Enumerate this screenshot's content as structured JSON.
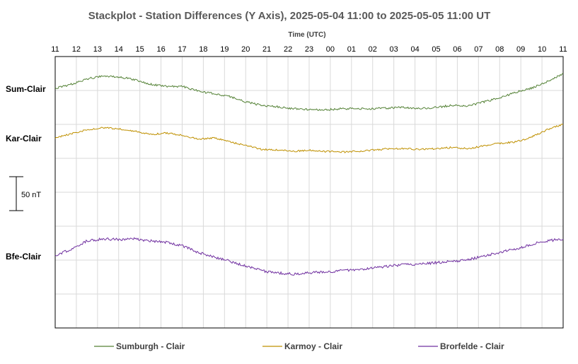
{
  "chart_data": {
    "type": "line",
    "title": "Stackplot - Station Differences (Y Axis),  2025-05-04 11:00 to 2025-05-05 11:00 UT",
    "xlabel": "Time (UTC)",
    "ylabel": "",
    "x_ticks": [
      "11",
      "12",
      "13",
      "14",
      "15",
      "16",
      "17",
      "18",
      "19",
      "20",
      "21",
      "22",
      "23",
      "00",
      "01",
      "02",
      "03",
      "04",
      "05",
      "06",
      "07",
      "08",
      "09",
      "10",
      "11"
    ],
    "scale_bar": "50 nT",
    "grid": true,
    "legend_position": "bottom",
    "series": [
      {
        "name": "Sumburgh - Clair",
        "axis_label": "Sum-Clair",
        "color": "#538135",
        "values": [
          0,
          6,
          14,
          18,
          17,
          13,
          6,
          3,
          3,
          -4,
          -8,
          -12,
          -20,
          -25,
          -27,
          -30,
          -31,
          -32,
          -30,
          -30,
          -30,
          -29,
          -28,
          -30,
          -28,
          -25,
          -26,
          -20,
          -14,
          -6,
          0,
          10,
          22
        ]
      },
      {
        "name": "Karmoy - Clair",
        "axis_label": "Kar-Clair",
        "color": "#BF9000",
        "values": [
          0,
          6,
          12,
          15,
          13,
          10,
          5,
          7,
          4,
          -2,
          0,
          -6,
          -11,
          -17,
          -18,
          -20,
          -18,
          -20,
          -21,
          -20,
          -18,
          -16,
          -16,
          -17,
          -16,
          -14,
          -16,
          -12,
          -8,
          -6,
          1,
          12,
          20
        ]
      },
      {
        "name": "Brorfelde - Clair",
        "axis_label": "Bfe-Clair",
        "color": "#7030A0",
        "values": [
          0,
          10,
          22,
          25,
          24,
          25,
          22,
          20,
          15,
          5,
          -2,
          -8,
          -15,
          -22,
          -25,
          -27,
          -25,
          -24,
          -22,
          -20,
          -18,
          -15,
          -13,
          -12,
          -10,
          -8,
          -6,
          0,
          5,
          10,
          17,
          22,
          25
        ]
      }
    ]
  }
}
